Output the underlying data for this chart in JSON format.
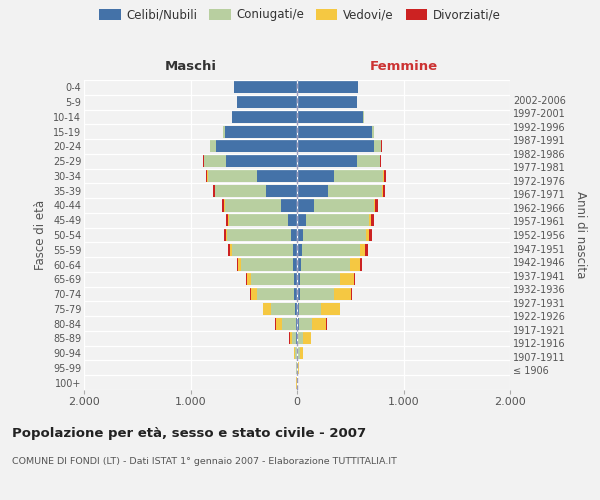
{
  "age_groups": [
    "100+",
    "95-99",
    "90-94",
    "85-89",
    "80-84",
    "75-79",
    "70-74",
    "65-69",
    "60-64",
    "55-59",
    "50-54",
    "45-49",
    "40-44",
    "35-39",
    "30-34",
    "25-29",
    "20-24",
    "15-19",
    "10-14",
    "5-9",
    "0-4"
  ],
  "birth_years": [
    "≤ 1906",
    "1907-1911",
    "1912-1916",
    "1917-1921",
    "1922-1926",
    "1927-1931",
    "1932-1936",
    "1937-1941",
    "1942-1946",
    "1947-1951",
    "1952-1956",
    "1957-1961",
    "1962-1966",
    "1967-1971",
    "1972-1976",
    "1977-1981",
    "1982-1986",
    "1987-1991",
    "1992-1996",
    "1997-2001",
    "2002-2006"
  ],
  "males": {
    "celibi": [
      2,
      2,
      3,
      5,
      10,
      18,
      25,
      30,
      35,
      42,
      55,
      80,
      150,
      290,
      380,
      670,
      760,
      680,
      610,
      560,
      590
    ],
    "coniugati": [
      2,
      3,
      15,
      40,
      130,
      230,
      350,
      400,
      490,
      570,
      600,
      560,
      530,
      480,
      460,
      200,
      55,
      18,
      5,
      2,
      2
    ],
    "vedovi": [
      1,
      3,
      10,
      25,
      60,
      70,
      60,
      40,
      25,
      15,
      8,
      5,
      3,
      2,
      1,
      1,
      0,
      0,
      0,
      0,
      0
    ],
    "divorziati": [
      0,
      0,
      1,
      2,
      3,
      5,
      10,
      12,
      15,
      20,
      25,
      25,
      20,
      20,
      15,
      8,
      3,
      1,
      0,
      0,
      0
    ]
  },
  "females": {
    "nubili": [
      2,
      2,
      5,
      8,
      15,
      20,
      28,
      32,
      38,
      48,
      58,
      85,
      155,
      290,
      350,
      560,
      720,
      700,
      620,
      560,
      570
    ],
    "coniugate": [
      2,
      5,
      20,
      50,
      130,
      210,
      320,
      370,
      460,
      540,
      590,
      590,
      570,
      510,
      460,
      220,
      70,
      20,
      6,
      2,
      2
    ],
    "vedove": [
      2,
      8,
      30,
      70,
      130,
      170,
      160,
      130,
      90,
      55,
      30,
      18,
      10,
      5,
      3,
      2,
      1,
      0,
      0,
      0,
      0
    ],
    "divorziate": [
      0,
      0,
      1,
      2,
      5,
      8,
      12,
      15,
      18,
      22,
      28,
      30,
      28,
      25,
      20,
      10,
      4,
      1,
      0,
      0,
      0
    ]
  },
  "colors": {
    "celibi": "#4472a8",
    "coniugati": "#b8cfa0",
    "vedovi": "#f5c842",
    "divorziati": "#cc2222"
  },
  "xlim": 2000,
  "title": "Popolazione per età, sesso e stato civile - 2007",
  "subtitle": "COMUNE DI FONDI (LT) - Dati ISTAT 1° gennaio 2007 - Elaborazione TUTTITALIA.IT",
  "ylabel_left": "Fasce di età",
  "ylabel_right": "Anni di nascita",
  "xlabel_left": "Maschi",
  "xlabel_right": "Femmine",
  "background_color": "#f2f2f2"
}
